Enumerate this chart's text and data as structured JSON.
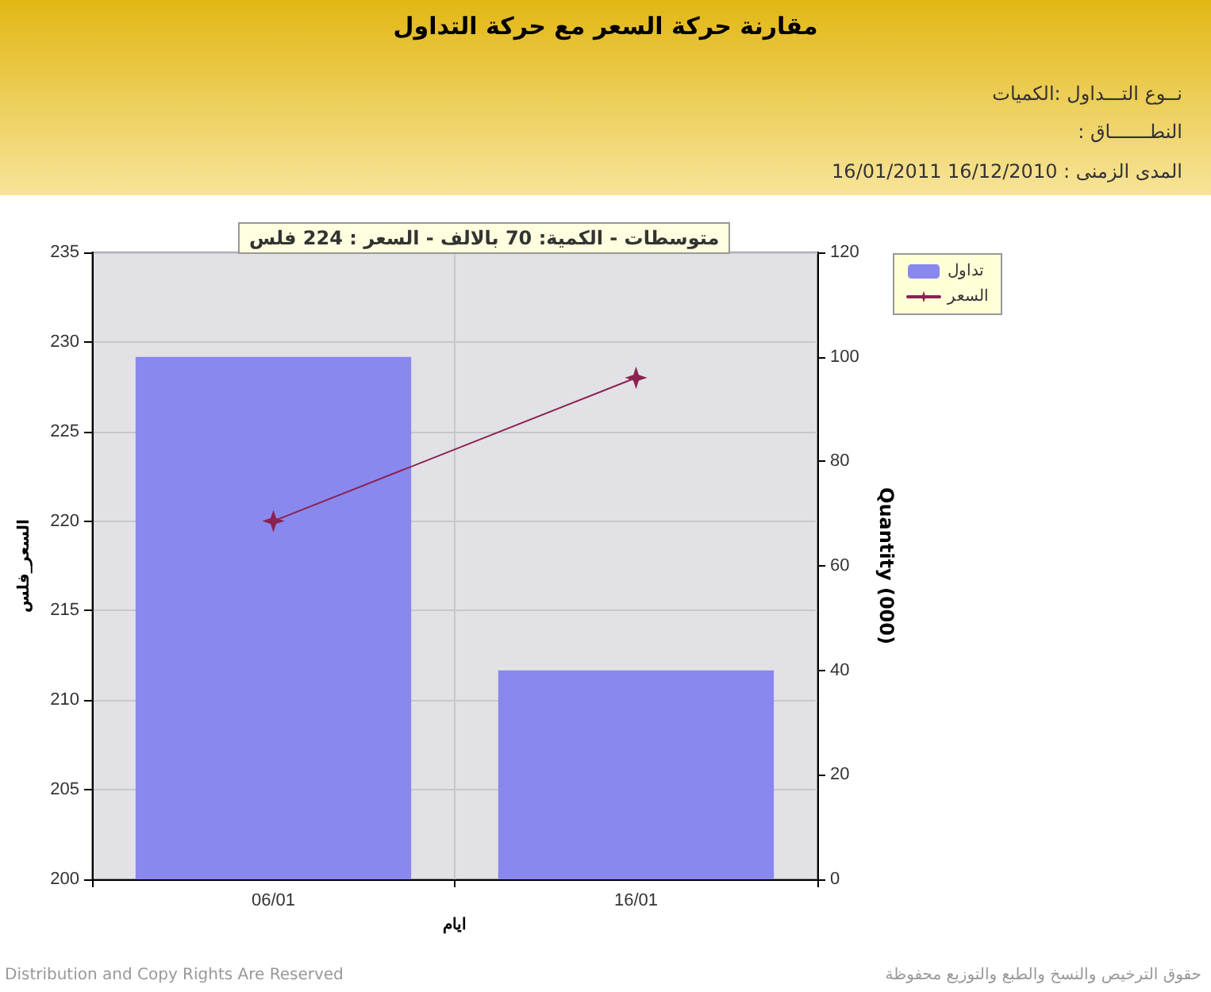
{
  "chart_data": {
    "type": "bar",
    "title": "مقارنة حركة السعر مع حركة التداول",
    "categories": [
      "06/01",
      "16/01"
    ],
    "series": [
      {
        "name": "تداول",
        "axis": "y2",
        "color": "#8888ee",
        "values": [
          100,
          40
        ]
      },
      {
        "name": "السعر",
        "type": "line",
        "axis": "y",
        "color": "#8b2252",
        "values": [
          220,
          228
        ],
        "marker": "star",
        "line_style": "solid"
      }
    ],
    "xlabel": "ايام",
    "ylabel": "السعر_فلس",
    "y2label": "Quantity (000)",
    "ylim": [
      200,
      235
    ],
    "yticks": [
      200,
      205,
      210,
      215,
      220,
      225,
      230,
      235
    ],
    "y2lim": [
      0,
      120
    ],
    "y2ticks": [
      0,
      20,
      40,
      60,
      80,
      100,
      120
    ],
    "grid": true,
    "legend": "top right",
    "annotations": [
      "نــوع التـــداول :الكميات",
      "النطـــــــاق :",
      "المدى الزمنى :   16/12/2010 16/01/2011",
      "متوسطات - الكمية: 70 بالالف  - السعر : 224 فلس",
      "Distribution and Copy Rights Are Reserved",
      "حقوق الترخيص والنسخ والطبع والتوزيع محفوظة"
    ]
  }
}
